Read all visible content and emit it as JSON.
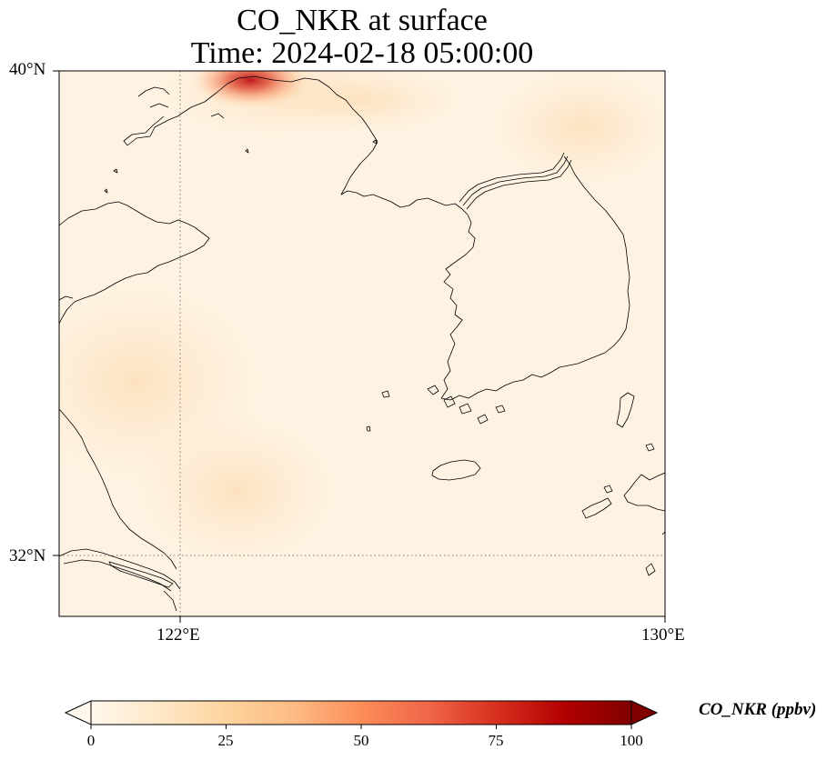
{
  "title": {
    "line1": "CO_NKR at surface",
    "line2": "Time: 2024-02-18 05:00:00"
  },
  "map": {
    "extent": {
      "lon_min": 119,
      "lon_max": 130,
      "lat_min": 31,
      "lat_max": 40
    },
    "gridlines": {
      "lons": [
        122,
        130
      ],
      "lats": [
        32,
        40
      ],
      "style": "dotted"
    },
    "lat_labels": [
      "40°N",
      "32°N"
    ],
    "lon_labels": [
      "122°E",
      "130°E"
    ],
    "colors": {
      "background": "#fef3e3",
      "coastline": "#000000",
      "gridline": "#7a7a7a",
      "hotspot": "#cb1818"
    }
  },
  "colorbar": {
    "label": "CO_NKR (ppbv)",
    "ticks": [
      "0",
      "25",
      "50",
      "75",
      "100"
    ],
    "min": 0,
    "max": 100,
    "cmap": "OrRd",
    "colors": [
      "#fff7ec",
      "#fee8c8",
      "#fdd49e",
      "#fdbb84",
      "#fc8d59",
      "#ef6548",
      "#d7301f",
      "#b30000",
      "#7f0000"
    ]
  }
}
